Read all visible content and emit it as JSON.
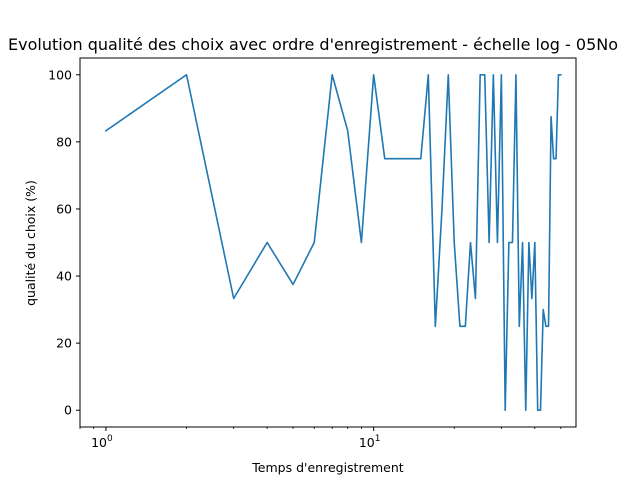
{
  "chart_data": {
    "type": "line",
    "title": "Evolution qualité des choix avec ordre d'enregistrement - échelle log - 05No",
    "xlabel": "Temps d'enregistrement",
    "ylabel": "qualité du choix (%)",
    "xscale": "log",
    "xlim": [
      0.8,
      57
    ],
    "ylim": [
      -5,
      105
    ],
    "xticks_major": [
      {
        "value": 1,
        "base": "10",
        "exp": "0"
      },
      {
        "value": 10,
        "base": "10",
        "exp": "1"
      }
    ],
    "yticks": [
      "0",
      "20",
      "40",
      "60",
      "80",
      "100"
    ],
    "grid": false,
    "line_color": "#1f77b4",
    "series": [
      {
        "x": [
          1,
          2,
          3,
          4,
          5,
          6,
          7,
          8,
          9,
          10,
          11,
          12,
          13,
          14,
          15,
          16,
          17,
          18,
          19,
          20,
          21,
          22,
          23,
          24,
          25,
          26,
          27,
          28,
          29,
          30,
          31,
          32,
          33,
          34,
          35,
          36,
          37,
          38,
          39,
          40,
          41,
          42,
          43,
          44,
          45,
          46,
          47,
          48,
          49,
          50
        ],
        "y": [
          83.3,
          100,
          33.3,
          50,
          37.5,
          50,
          100,
          83.3,
          50,
          100,
          75,
          75,
          75,
          75,
          75,
          100,
          25,
          60,
          100,
          50,
          25,
          25,
          50,
          33.3,
          100,
          100,
          50,
          100,
          50,
          100,
          0,
          50,
          50,
          100,
          25,
          50,
          0,
          50,
          33.3,
          50,
          0,
          0,
          30,
          25,
          25,
          87.5,
          75,
          75,
          100,
          100
        ]
      }
    ]
  }
}
